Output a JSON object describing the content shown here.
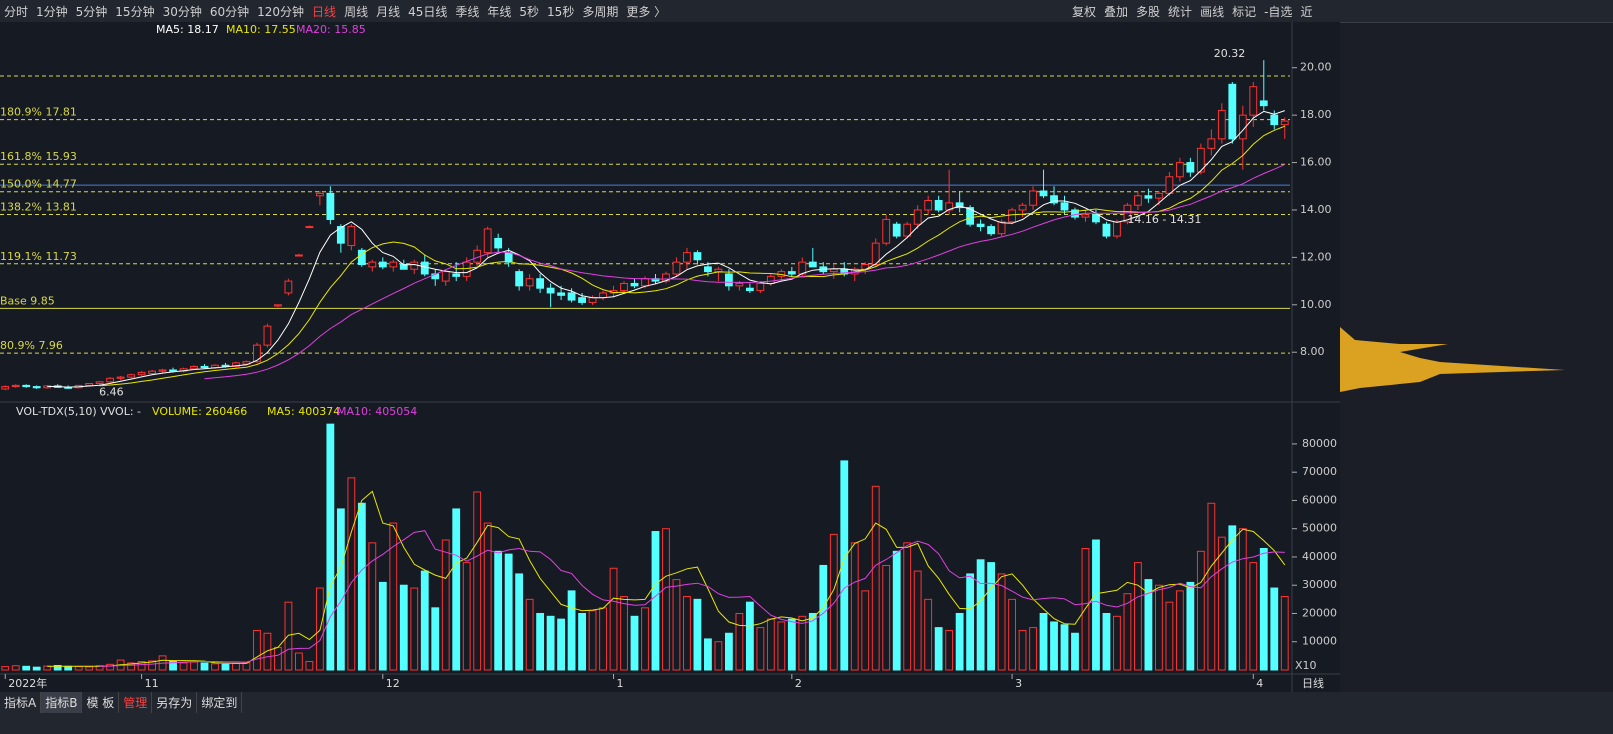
{
  "toolbar": {
    "periods": [
      "分时",
      "1分钟",
      "5分钟",
      "15分钟",
      "30分钟",
      "60分钟",
      "120分钟",
      "日线",
      "周线",
      "月线",
      "45日线",
      "季线",
      "年线",
      "5秒",
      "15秒",
      "多周期",
      "更多 〉"
    ],
    "active": 7,
    "tools": [
      "复权",
      "叠加",
      "多股",
      "统计",
      "画线",
      "标记",
      "-自选",
      "近"
    ]
  },
  "tabs": {
    "items": [
      "指标A",
      "指标B",
      "模 板",
      "管理",
      "另存为",
      "绑定到"
    ],
    "active": 1,
    "highlight": 3
  },
  "chart_data": [
    {
      "type": "candlestick",
      "ma_labels": [
        {
          "text": "MA5: 18.17",
          "color": "#ffffff",
          "period": 5
        },
        {
          "text": "MA10: 17.55",
          "color": "#e8e800",
          "period": 10
        },
        {
          "text": "MA20: 15.85",
          "color": "#e040e0",
          "period": 20
        }
      ],
      "ylim": [
        5.9,
        21.17
      ],
      "yticks": [
        {
          "value": 8,
          "label": "8.00"
        },
        {
          "value": 10,
          "label": "10.00"
        },
        {
          "value": 12,
          "label": "12.00"
        },
        {
          "value": 14,
          "label": "14.00"
        },
        {
          "value": 16,
          "label": "16.00"
        },
        {
          "value": 18,
          "label": "18.00"
        },
        {
          "value": 20,
          "label": "20.00"
        }
      ],
      "levels": [
        {
          "value": 19.65,
          "color": "#d8d84a",
          "style": "dash"
        },
        {
          "value": 17.81,
          "label": "180.9% 17.81",
          "color": "#d8d84a",
          "style": "dash"
        },
        {
          "value": 15.93,
          "label": "161.8% 15.93",
          "color": "#d8d84a",
          "style": "dash"
        },
        {
          "value": 15.05,
          "color": "#4a7fd8",
          "style": "solid"
        },
        {
          "value": 14.77,
          "label": "150.0% 14.77",
          "color": "#d8d84a",
          "style": "dash"
        },
        {
          "value": 13.81,
          "label": "138.2% 13.81",
          "color": "#d8d84a",
          "style": "dash"
        },
        {
          "value": 11.73,
          "label": "119.1% 11.73",
          "color": "#d8d84a",
          "style": "dash"
        },
        {
          "value": 9.85,
          "label": "Base 9.85",
          "color": "#d8d84a",
          "style": "solid"
        },
        {
          "value": 7.96,
          "label": "80.9% 7.96",
          "color": "#d8d84a",
          "style": "dash"
        }
      ],
      "annotations": [
        {
          "text": "20.32",
          "index": 120,
          "value": 20.32
        },
        {
          "text": "6.46",
          "index": 8,
          "value": 6.46
        },
        {
          "text": "14.16 - 14.31",
          "index": 107,
          "value": 13.75
        }
      ],
      "x_labels": [
        {
          "index": 0,
          "label": "2022年"
        },
        {
          "index": 13,
          "label": "11"
        },
        {
          "index": 36,
          "label": "12"
        },
        {
          "index": 58,
          "label": "1"
        },
        {
          "index": 75,
          "label": "2"
        },
        {
          "index": 96,
          "label": "3"
        },
        {
          "index": 119,
          "label": "4"
        }
      ],
      "period_label": "日线",
      "up_color": "#ff3232",
      "down_color": "#54ffff",
      "ohlc": [
        [
          6.45,
          6.6,
          6.4,
          6.55
        ],
        [
          6.55,
          6.65,
          6.5,
          6.6
        ],
        [
          6.6,
          6.65,
          6.5,
          6.55
        ],
        [
          6.55,
          6.6,
          6.45,
          6.5
        ],
        [
          6.5,
          6.6,
          6.46,
          6.58
        ],
        [
          6.58,
          6.65,
          6.5,
          6.52
        ],
        [
          6.52,
          6.6,
          6.46,
          6.5
        ],
        [
          6.5,
          6.62,
          6.48,
          6.6
        ],
        [
          6.6,
          6.7,
          6.55,
          6.68
        ],
        [
          6.68,
          6.78,
          6.62,
          6.75
        ],
        [
          6.75,
          6.95,
          6.7,
          6.9
        ],
        [
          6.9,
          7.0,
          6.82,
          6.95
        ],
        [
          6.95,
          7.1,
          6.9,
          7.05
        ],
        [
          7.05,
          7.2,
          7.0,
          7.15
        ],
        [
          7.1,
          7.25,
          7.05,
          7.2
        ],
        [
          7.2,
          7.3,
          7.1,
          7.25
        ],
        [
          7.25,
          7.35,
          7.15,
          7.2
        ],
        [
          7.2,
          7.35,
          7.15,
          7.3
        ],
        [
          7.3,
          7.45,
          7.25,
          7.4
        ],
        [
          7.4,
          7.5,
          7.3,
          7.35
        ],
        [
          7.35,
          7.5,
          7.3,
          7.45
        ],
        [
          7.45,
          7.55,
          7.35,
          7.4
        ],
        [
          7.4,
          7.6,
          7.35,
          7.55
        ],
        [
          7.5,
          7.65,
          7.45,
          7.6
        ],
        [
          7.6,
          8.4,
          7.55,
          8.3
        ],
        [
          8.3,
          9.2,
          8.2,
          9.1
        ],
        [
          9.95,
          10.0,
          9.9,
          10.0
        ],
        [
          10.5,
          11.1,
          10.4,
          11.0
        ],
        [
          12.1,
          12.15,
          12.05,
          12.1
        ],
        [
          13.3,
          13.35,
          13.25,
          13.3
        ],
        [
          14.6,
          14.8,
          14.2,
          14.7
        ],
        [
          14.7,
          15.0,
          13.4,
          13.6
        ],
        [
          13.3,
          13.4,
          12.2,
          12.6
        ],
        [
          12.5,
          13.4,
          12.3,
          13.3
        ],
        [
          12.3,
          12.4,
          11.6,
          11.7
        ],
        [
          11.6,
          11.9,
          11.4,
          11.8
        ],
        [
          11.8,
          12.0,
          11.5,
          11.6
        ],
        [
          11.6,
          11.9,
          11.4,
          11.8
        ],
        [
          11.7,
          11.9,
          11.5,
          11.5
        ],
        [
          11.5,
          11.9,
          11.3,
          11.8
        ],
        [
          11.8,
          12.1,
          11.2,
          11.3
        ],
        [
          11.3,
          11.5,
          10.8,
          11.1
        ],
        [
          11.0,
          11.5,
          10.8,
          11.4
        ],
        [
          11.3,
          11.8,
          11.0,
          11.2
        ],
        [
          11.2,
          12.0,
          11.0,
          11.8
        ],
        [
          11.8,
          12.5,
          11.6,
          12.3
        ],
        [
          12.2,
          13.3,
          12.0,
          13.2
        ],
        [
          12.8,
          13.0,
          12.2,
          12.4
        ],
        [
          12.2,
          12.4,
          11.6,
          11.8
        ],
        [
          11.4,
          11.5,
          10.6,
          10.8
        ],
        [
          10.8,
          11.3,
          10.6,
          11.1
        ],
        [
          11.1,
          11.3,
          10.5,
          10.7
        ],
        [
          10.7,
          10.9,
          9.9,
          10.5
        ],
        [
          10.5,
          10.8,
          10.2,
          10.4
        ],
        [
          10.5,
          10.7,
          10.1,
          10.2
        ],
        [
          10.3,
          10.5,
          10.0,
          10.1
        ],
        [
          10.1,
          10.4,
          10.0,
          10.3
        ],
        [
          10.3,
          10.6,
          10.2,
          10.5
        ],
        [
          10.5,
          10.8,
          10.3,
          10.6
        ],
        [
          10.6,
          11.0,
          10.5,
          10.9
        ],
        [
          10.9,
          11.1,
          10.7,
          10.8
        ],
        [
          10.8,
          11.2,
          10.7,
          11.1
        ],
        [
          11.1,
          11.3,
          10.9,
          11.0
        ],
        [
          11.0,
          11.4,
          10.9,
          11.3
        ],
        [
          11.3,
          12.0,
          11.2,
          11.8
        ],
        [
          11.8,
          12.4,
          11.5,
          12.2
        ],
        [
          12.2,
          12.3,
          11.7,
          11.9
        ],
        [
          11.6,
          11.8,
          11.2,
          11.4
        ],
        [
          11.4,
          11.6,
          11.0,
          11.5
        ],
        [
          11.3,
          11.5,
          10.6,
          10.8
        ],
        [
          10.8,
          11.0,
          10.6,
          10.9
        ],
        [
          10.7,
          10.9,
          10.5,
          10.6
        ],
        [
          10.6,
          11.0,
          10.5,
          10.9
        ],
        [
          10.9,
          11.3,
          10.8,
          11.2
        ],
        [
          11.2,
          11.5,
          11.0,
          11.4
        ],
        [
          11.4,
          11.6,
          11.2,
          11.3
        ],
        [
          11.3,
          12.0,
          11.2,
          11.8
        ],
        [
          11.8,
          12.4,
          11.6,
          11.6
        ],
        [
          11.6,
          11.8,
          11.3,
          11.4
        ],
        [
          11.4,
          11.7,
          11.1,
          11.5
        ],
        [
          11.5,
          11.8,
          11.2,
          11.3
        ],
        [
          11.3,
          11.6,
          11.0,
          11.5
        ],
        [
          11.5,
          11.8,
          11.3,
          11.7
        ],
        [
          11.7,
          12.8,
          11.6,
          12.6
        ],
        [
          12.6,
          13.8,
          12.5,
          13.6
        ],
        [
          13.4,
          13.5,
          12.8,
          12.9
        ],
        [
          12.9,
          13.5,
          12.8,
          13.4
        ],
        [
          13.4,
          14.2,
          13.2,
          14.0
        ],
        [
          14.0,
          14.6,
          13.8,
          14.4
        ],
        [
          14.4,
          14.6,
          13.9,
          14.0
        ],
        [
          14.0,
          15.7,
          13.8,
          14.3
        ],
        [
          14.3,
          14.8,
          13.9,
          14.1
        ],
        [
          14.1,
          14.2,
          13.3,
          13.4
        ],
        [
          13.4,
          13.6,
          13.1,
          13.3
        ],
        [
          13.3,
          13.4,
          12.9,
          13.0
        ],
        [
          13.0,
          13.6,
          12.9,
          13.5
        ],
        [
          13.5,
          14.1,
          13.4,
          14.0
        ],
        [
          14.0,
          14.3,
          13.7,
          14.2
        ],
        [
          14.2,
          15.0,
          14.0,
          14.8
        ],
        [
          14.8,
          15.7,
          14.5,
          14.6
        ],
        [
          14.6,
          15.0,
          14.2,
          14.3
        ],
        [
          14.3,
          14.6,
          13.8,
          14.0
        ],
        [
          14.0,
          14.1,
          13.6,
          13.7
        ],
        [
          13.7,
          14.0,
          13.5,
          13.8
        ],
        [
          13.8,
          14.0,
          13.4,
          13.5
        ],
        [
          13.4,
          13.5,
          12.8,
          12.9
        ],
        [
          12.9,
          13.6,
          12.8,
          13.5
        ],
        [
          13.5,
          14.3,
          13.4,
          14.2
        ],
        [
          14.2,
          14.8,
          14.0,
          14.6
        ],
        [
          14.6,
          14.9,
          14.3,
          14.5
        ],
        [
          14.5,
          14.8,
          14.2,
          14.7
        ],
        [
          14.7,
          15.6,
          14.6,
          15.4
        ],
        [
          15.4,
          16.2,
          15.2,
          16.0
        ],
        [
          16.0,
          16.2,
          15.4,
          15.6
        ],
        [
          15.6,
          16.8,
          15.5,
          16.6
        ],
        [
          16.6,
          17.4,
          16.3,
          17.0
        ],
        [
          17.0,
          18.5,
          16.8,
          18.2
        ],
        [
          19.3,
          19.4,
          16.8,
          17.0
        ],
        [
          17.0,
          18.4,
          15.7,
          18.0
        ],
        [
          18.0,
          19.4,
          17.5,
          19.2
        ],
        [
          18.6,
          20.32,
          18.2,
          18.4
        ],
        [
          18.0,
          18.2,
          17.4,
          17.6
        ],
        [
          17.6,
          17.9,
          17.0,
          17.75
        ]
      ]
    },
    {
      "type": "volume",
      "header": "VOL-TDX(5,10) VVOL: -",
      "ma_labels": [
        {
          "text": "VOLUME: 260466",
          "color": "#e8e800"
        },
        {
          "text": "MA5: 400374",
          "color": "#e8e800",
          "period": 5
        },
        {
          "text": "MA10: 405054",
          "color": "#e040e0",
          "period": 10
        }
      ],
      "unit_label": "X10",
      "ylim": [
        0,
        86700
      ],
      "yticks": [
        10000,
        20000,
        30000,
        40000,
        50000,
        60000,
        70000,
        80000
      ],
      "values": [
        1200,
        1500,
        1300,
        1000,
        1400,
        1600,
        1300,
        1200,
        1100,
        1500,
        2000,
        3500,
        2500,
        3000,
        3200,
        5000,
        3000,
        2500,
        2800,
        2500,
        2200,
        2000,
        2300,
        2600,
        14000,
        13000,
        8000,
        24000,
        6000,
        3000,
        29000,
        87000,
        57000,
        68000,
        59000,
        45000,
        31000,
        52000,
        30000,
        29000,
        35000,
        22000,
        46000,
        57000,
        38000,
        63000,
        52000,
        42000,
        41000,
        34000,
        25000,
        20000,
        19000,
        18000,
        28000,
        20000,
        21000,
        22000,
        36000,
        26000,
        19000,
        22000,
        49000,
        50000,
        32000,
        26000,
        25000,
        11000,
        10000,
        13000,
        20000,
        24000,
        15000,
        18000,
        17000,
        18000,
        19000,
        20000,
        37000,
        48000,
        74000,
        45000,
        28000,
        65000,
        37000,
        42000,
        45000,
        35000,
        25000,
        15000,
        14000,
        20000,
        34000,
        39000,
        38000,
        34000,
        25000,
        14000,
        15000,
        20000,
        17000,
        16000,
        13000,
        43000,
        46000,
        20000,
        19000,
        27000,
        38000,
        32000,
        30000,
        24000,
        28000,
        31000,
        42000,
        59000,
        47000,
        51000,
        50000,
        38000,
        43000,
        29000,
        26000
      ]
    }
  ]
}
